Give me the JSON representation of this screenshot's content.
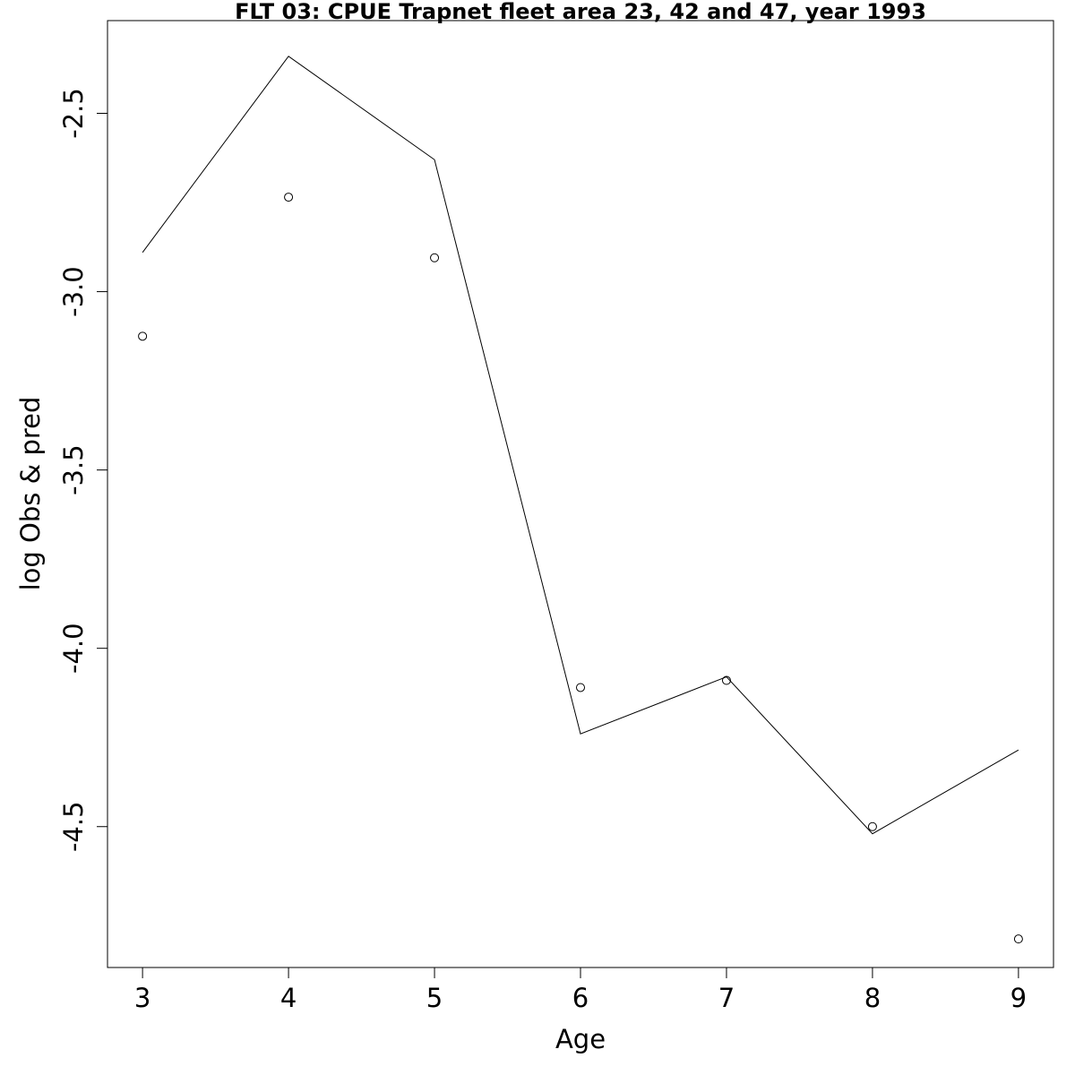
{
  "chart_data": {
    "type": "line",
    "title": "FLT 03: CPUE Trapnet fleet area 23, 42 and 47, year 1993",
    "xlabel": "Age",
    "ylabel": "log Obs & pred",
    "x": [
      3,
      4,
      5,
      6,
      7,
      8,
      9
    ],
    "xlim": [
      2.76,
      9.24
    ],
    "ylim": [
      -4.895,
      -2.24
    ],
    "xticks": [
      "3",
      "4",
      "5",
      "6",
      "7",
      "8",
      "9"
    ],
    "yticks": [
      "-2.5",
      "-3.0",
      "-3.5",
      "-4.0",
      "-4.5"
    ],
    "grid": false,
    "legend": "none",
    "series": [
      {
        "role": "predicted",
        "style": "line",
        "color": "#000000",
        "values": [
          -2.89,
          -2.34,
          -2.63,
          -4.24,
          -4.08,
          -4.52,
          -4.285
        ]
      },
      {
        "role": "observed",
        "style": "points",
        "marker": "open-circle",
        "color": "#000000",
        "values": [
          -3.125,
          -2.735,
          -2.905,
          -4.11,
          -4.09,
          -4.5,
          -4.815
        ]
      }
    ]
  }
}
